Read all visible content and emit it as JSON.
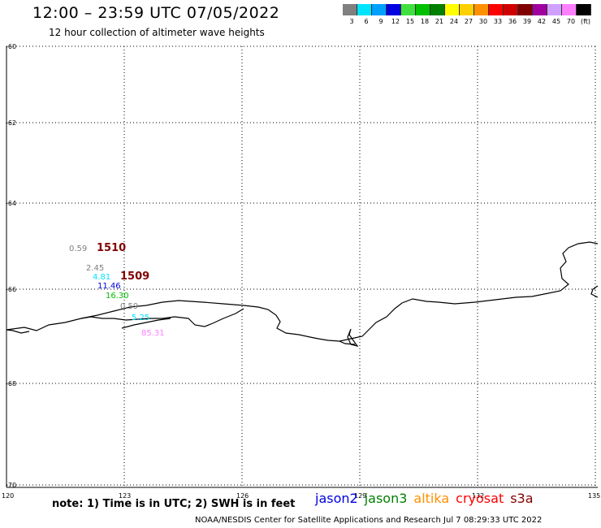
{
  "title": "12:00 – 23:59 UTC 07/05/2022",
  "subtitle": "12 hour collection of altimeter wave heights",
  "colorbar": {
    "colors": [
      "#808080",
      "#00e5ff",
      "#00a0ff",
      "#0000e0",
      "#40e040",
      "#00c000",
      "#008000",
      "#ffff00",
      "#ffd000",
      "#ff9000",
      "#ff0000",
      "#d00000",
      "#800000",
      "#a000a0",
      "#d0a0ff",
      "#ff80ff",
      "#000000"
    ],
    "labels": [
      "3",
      "6",
      "9",
      "12",
      "15",
      "18",
      "21",
      "24",
      "27",
      "30",
      "33",
      "36",
      "39",
      "42",
      "45",
      "70",
      "(ft)"
    ]
  },
  "axes": {
    "lat_labels": [
      "-60",
      "-62",
      "-64",
      "-66",
      "-68",
      "-70"
    ],
    "lon_labels": [
      "120",
      "123",
      "126",
      "129",
      "132",
      "135"
    ]
  },
  "observations": [
    {
      "text": "0.59",
      "color": "#808080"
    },
    {
      "text": "1510",
      "color": "#800000"
    },
    {
      "text": "2.45",
      "color": "#808080"
    },
    {
      "text": "4.81",
      "color": "#00e5ff"
    },
    {
      "text": "1509",
      "color": "#800000"
    },
    {
      "text": "11.46",
      "color": "#0000e0"
    },
    {
      "text": "16.30",
      "color": "#00c000"
    },
    {
      "text": "0.59",
      "color": "#808080"
    },
    {
      "text": "5.25",
      "color": "#00e5ff"
    },
    {
      "text": "85.31",
      "color": "#ff80ff"
    }
  ],
  "note": "note: 1) Time is in UTC; 2) SWH is in feet",
  "legend": [
    {
      "label": "jason2",
      "color": "#0000e0"
    },
    {
      "label": "jason3",
      "color": "#008000"
    },
    {
      "label": "altika",
      "color": "#ff9000"
    },
    {
      "label": "cryosat",
      "color": "#ff0000"
    },
    {
      "label": "s3a",
      "color": "#800000"
    }
  ],
  "credit": "NOAA/NESDIS Center for Satellite Applications and Research   Jul  7 08:29:33 UTC 2022"
}
